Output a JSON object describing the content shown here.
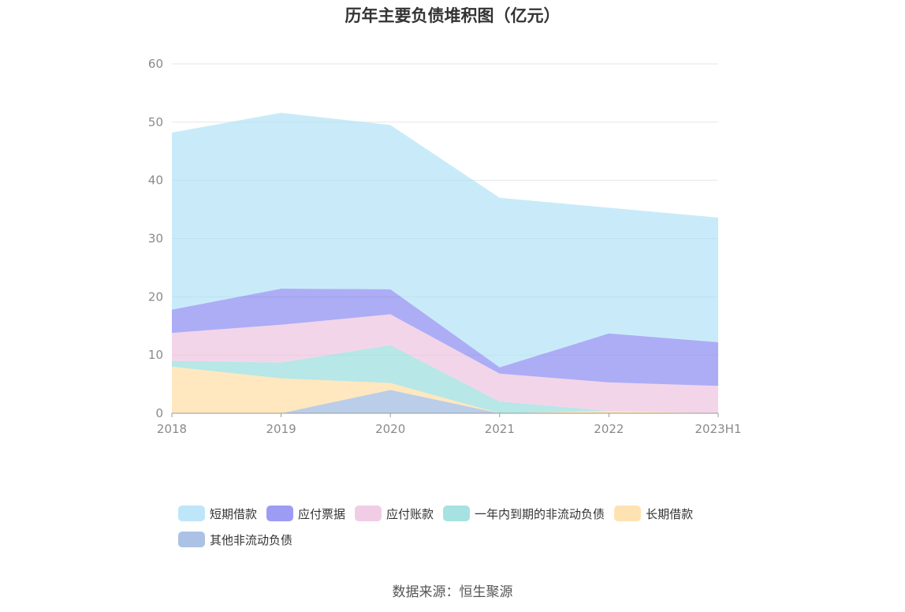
{
  "chart_data": {
    "type": "area",
    "title": "历年主要负债堆积图（亿元）",
    "source": "数据来源：恒生聚源",
    "x": [
      "2018",
      "2019",
      "2020",
      "2021",
      "2022",
      "2023H1"
    ],
    "ylim": [
      0,
      60
    ],
    "yticks": [
      "0",
      "10",
      "20",
      "30",
      "40",
      "50",
      "60"
    ],
    "grid": true,
    "legend_position": "bottom",
    "stacked": true,
    "series": [
      {
        "name": "其他非流动负债",
        "color": "#8FAEDC",
        "values": [
          0.0,
          0.0,
          4.0,
          0.0,
          0.0,
          0.0
        ]
      },
      {
        "name": "长期借款",
        "color": "#FFD898",
        "values": [
          8.0,
          6.0,
          1.2,
          0.0,
          0.4,
          0.0
        ]
      },
      {
        "name": "一年内到期的非流动负债",
        "color": "#8AD8D8",
        "values": [
          1.0,
          2.7,
          6.5,
          2.0,
          0.0,
          0.0
        ]
      },
      {
        "name": "应付账款",
        "color": "#ECBCDC",
        "values": [
          4.8,
          6.5,
          5.3,
          4.8,
          4.9,
          4.7
        ]
      },
      {
        "name": "应付票据",
        "color": "#7B7BF0",
        "values": [
          4.0,
          6.2,
          4.3,
          1.1,
          8.4,
          7.5
        ]
      },
      {
        "name": "短期借款",
        "color": "#A8DEF6",
        "values": [
          30.4,
          30.2,
          28.2,
          29.1,
          21.6,
          21.4
        ]
      }
    ],
    "legend_order": [
      "短期借款",
      "应付票据",
      "应付账款",
      "一年内到期的非流动负债",
      "长期借款",
      "其他非流动负债"
    ]
  }
}
